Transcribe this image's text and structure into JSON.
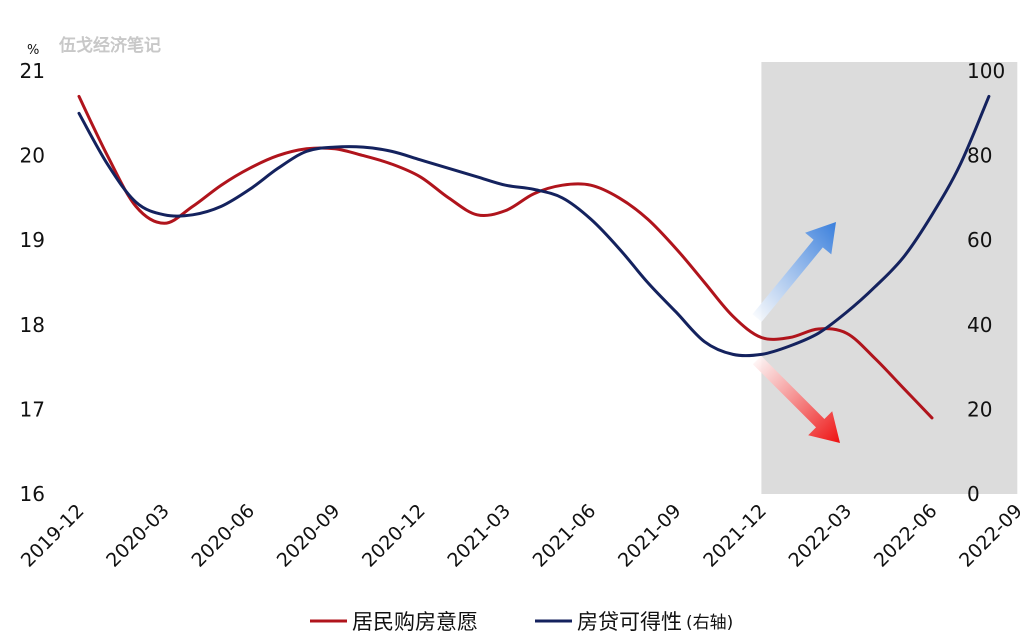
{
  "watermark": "伍戈经济笔记",
  "unit_left": "%",
  "colors": {
    "series_red": "#b0141c",
    "series_navy": "#14225e",
    "shade": "#dcdcdc",
    "arrow_blue": "#3a7fdc",
    "arrow_red": "#ee1111"
  },
  "chart_data": {
    "type": "line",
    "x": [
      "2019-12",
      "2020-01",
      "2020-02",
      "2020-03",
      "2020-04",
      "2020-05",
      "2020-06",
      "2020-07",
      "2020-08",
      "2020-09",
      "2020-10",
      "2020-11",
      "2020-12",
      "2021-01",
      "2021-02",
      "2021-03",
      "2021-04",
      "2021-05",
      "2021-06",
      "2021-07",
      "2021-08",
      "2021-09",
      "2021-10",
      "2021-11",
      "2021-12",
      "2022-01",
      "2022-02",
      "2022-03",
      "2022-04",
      "2022-05",
      "2022-06",
      "2022-07",
      "2022-08",
      "2022-09"
    ],
    "xticks": [
      "2019-12",
      "2020-03",
      "2020-06",
      "2020-09",
      "2020-12",
      "2021-03",
      "2021-06",
      "2021-09",
      "2021-12",
      "2022-03",
      "2022-06",
      "2022-09"
    ],
    "series": [
      {
        "name": "居民购房意愿",
        "axis": "left",
        "values": [
          20.7,
          20.0,
          19.4,
          19.2,
          19.4,
          19.65,
          19.85,
          20.0,
          20.08,
          20.08,
          20.0,
          19.9,
          19.75,
          19.5,
          19.3,
          19.35,
          19.55,
          19.65,
          19.65,
          19.5,
          19.25,
          18.9,
          18.5,
          18.1,
          17.85,
          17.85,
          17.95,
          17.9,
          17.6,
          17.25,
          16.9,
          null,
          null,
          null
        ]
      },
      {
        "name": "房贷可得性 (右轴)",
        "axis": "right",
        "values": [
          90,
          78,
          69,
          66,
          66,
          68,
          72,
          77,
          81,
          82,
          82,
          81,
          79,
          77,
          75,
          73,
          72,
          70,
          65,
          58,
          50,
          43,
          36,
          33,
          33,
          35,
          38,
          43,
          49,
          56,
          66,
          78,
          94,
          null
        ]
      }
    ],
    "ylim_left": [
      16,
      21
    ],
    "yticks_left": [
      "16",
      "17",
      "18",
      "19",
      "20",
      "21"
    ],
    "ylim_right": [
      0,
      100
    ],
    "yticks_right": [
      "0",
      "20",
      "40",
      "60",
      "80",
      "100"
    ],
    "shaded_range": [
      "2021-12",
      "2022-09"
    ],
    "legend_position": "bottom-center",
    "grid": false
  },
  "legend": {
    "red_label": "居民购房意愿",
    "navy_label": "房贷可得性",
    "navy_suffix": "(右轴)"
  }
}
